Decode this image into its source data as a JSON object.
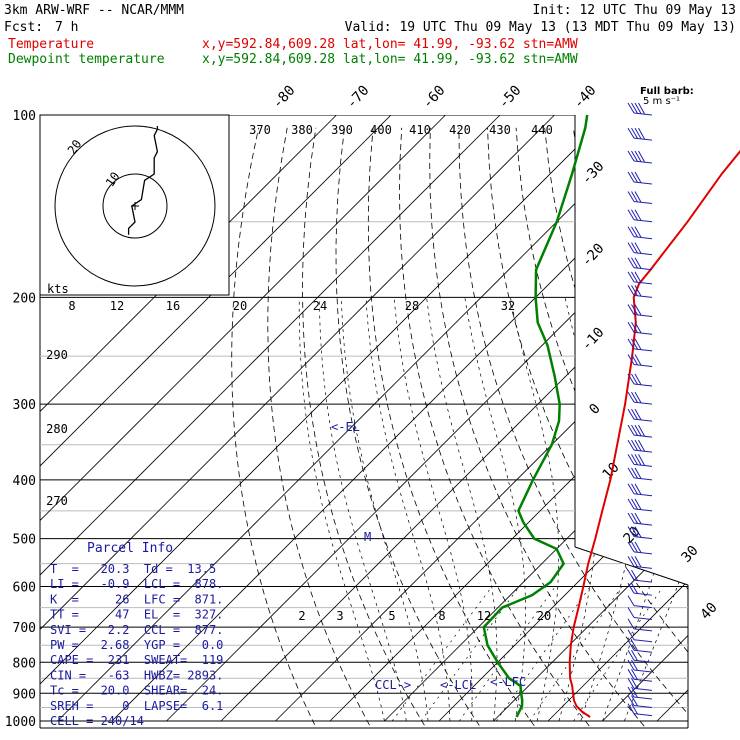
{
  "header": {
    "model": "3km ARW-WRF -- NCAR/MMM",
    "init": "Init: 12 UTC Thu 09 May 13",
    "fcst_label": "Fcst:",
    "fcst_value": "7 h",
    "valid": "Valid: 19 UTC Thu 09 May 13 (13 MDT Thu 09 May 13)",
    "temp_label": "Temperature",
    "temp_info": "x,y=592.84,609.28   lat,lon= 41.99, -93.62  stn=AMW",
    "dew_label": "Dewpoint temperature",
    "dew_info": "x,y=592.84,609.28   lat,lon= 41.99, -93.62  stn=AMW",
    "barb_title": "Full barb:",
    "barb_unit": "5 m s⁻¹"
  },
  "colors": {
    "temperature": "#e00000",
    "dewpoint": "#008000",
    "parcel_text": "#1a1aa0",
    "wind": "#2020b0"
  },
  "hodograph": {
    "kts_label": "kts",
    "ring_labels": [
      "20",
      "10"
    ],
    "hodo_points": [
      [
        -2,
        -9
      ],
      [
        -2,
        -7
      ],
      [
        0,
        -5
      ],
      [
        -1,
        0
      ],
      [
        2,
        2
      ],
      [
        3,
        8
      ],
      [
        6,
        10
      ],
      [
        6,
        15
      ],
      [
        7,
        17
      ],
      [
        6,
        22
      ],
      [
        7,
        24
      ],
      [
        7,
        25
      ]
    ]
  },
  "chart_data": {
    "type": "skew-T log-P sounding",
    "title": "3km ARW-WRF -- NCAR/MMM",
    "pressure_levels_hPa": [
      100,
      200,
      300,
      400,
      500,
      600,
      700,
      800,
      900,
      1000
    ],
    "skewed_temperature_labels_C": [
      "-80",
      "-70",
      "-60",
      "-50",
      "-40",
      "-30",
      "-20",
      "-10",
      "0",
      "10",
      "20",
      "30",
      "40"
    ],
    "theta_labels_K": [
      "370",
      "380",
      "390",
      "400",
      "410",
      "420",
      "430",
      "440",
      "290",
      "280",
      "270"
    ],
    "mixing_ratio_labels": [
      "2",
      "3",
      "5",
      "8",
      "12",
      "20"
    ],
    "hodo_speed_labels_kts": [
      "8",
      "12",
      "16",
      "20",
      "24",
      "28",
      "32"
    ],
    "series": [
      {
        "name": "Temperature",
        "points": [
          [
            985,
            27
          ],
          [
            965,
            24.5
          ],
          [
            945,
            22.5
          ],
          [
            925,
            21
          ],
          [
            900,
            19.5
          ],
          [
            875,
            18
          ],
          [
            850,
            16.2
          ],
          [
            800,
            13.2
          ],
          [
            750,
            10.3
          ],
          [
            700,
            7.5
          ],
          [
            650,
            4.8
          ],
          [
            600,
            1.8
          ],
          [
            550,
            -1.5
          ],
          [
            500,
            -4.8
          ],
          [
            450,
            -8.6
          ],
          [
            400,
            -12.8
          ],
          [
            350,
            -18
          ],
          [
            300,
            -24
          ],
          [
            250,
            -31.5
          ],
          [
            220,
            -37
          ],
          [
            200,
            -42
          ],
          [
            190,
            -43.5
          ],
          [
            180,
            -44
          ],
          [
            150,
            -46
          ],
          [
            125,
            -48.5
          ],
          [
            100,
            -50.5
          ]
        ]
      },
      {
        "name": "Dewpoint temperature",
        "points": [
          [
            985,
            13.5
          ],
          [
            965,
            13
          ],
          [
            945,
            12.5
          ],
          [
            925,
            11.5
          ],
          [
            900,
            10
          ],
          [
            875,
            8.5
          ],
          [
            850,
            5
          ],
          [
            800,
            0
          ],
          [
            750,
            -5
          ],
          [
            700,
            -9
          ],
          [
            650,
            -9.2
          ],
          [
            620,
            -6
          ],
          [
            590,
            -5
          ],
          [
            550,
            -6
          ],
          [
            520,
            -10
          ],
          [
            500,
            -16
          ],
          [
            470,
            -21
          ],
          [
            450,
            -24
          ],
          [
            400,
            -27
          ],
          [
            350,
            -30
          ],
          [
            320,
            -33
          ],
          [
            300,
            -36
          ],
          [
            270,
            -42
          ],
          [
            240,
            -49
          ],
          [
            220,
            -55
          ],
          [
            200,
            -60
          ],
          [
            180,
            -65
          ],
          [
            150,
            -70
          ],
          [
            125,
            -76
          ],
          [
            105,
            -82
          ],
          [
            100,
            -84
          ]
        ]
      }
    ],
    "annotations": [
      "<-EL",
      "M",
      "CCL->",
      "<-LCL",
      "<-LFC"
    ],
    "wind_barbs": {
      "pressure_hPa": [
        100,
        110,
        120,
        130,
        140,
        150,
        160,
        170,
        180,
        190,
        200,
        215,
        230,
        245,
        260,
        280,
        300,
        320,
        340,
        360,
        380,
        400,
        425,
        450,
        475,
        500,
        530,
        560,
        590,
        620,
        650,
        680,
        710,
        740,
        770,
        800,
        830,
        860,
        890,
        920,
        950,
        980
      ],
      "speed_kts": [
        35,
        35,
        35,
        30,
        30,
        30,
        30,
        30,
        30,
        25,
        25,
        25,
        25,
        30,
        30,
        30,
        30,
        30,
        35,
        35,
        35,
        30,
        30,
        30,
        30,
        25,
        25,
        25,
        20,
        15,
        10,
        8,
        10,
        12,
        15,
        15,
        18,
        20,
        22,
        20,
        18,
        15
      ]
    }
  },
  "parcel_info": {
    "title": "Parcel Info",
    "rows": [
      "T  =   20.3  Td =  13.5",
      "LI =   -0.9  LCL =  878.",
      "K  =     26  LFC =  871.",
      "TT =     47  EL  =  327.",
      "SVI =   2.2  CCL =  877.",
      "PW =   2.68  YGP =   0.0",
      "CAPE =  231  SWEAT=  119",
      "CIN =   -63  HWBZ= 2893.",
      "Tc =   20.0  SHEAR=  24.",
      "SREH =    0  LAPSE=  6.1",
      "CELL = 240/14"
    ]
  }
}
